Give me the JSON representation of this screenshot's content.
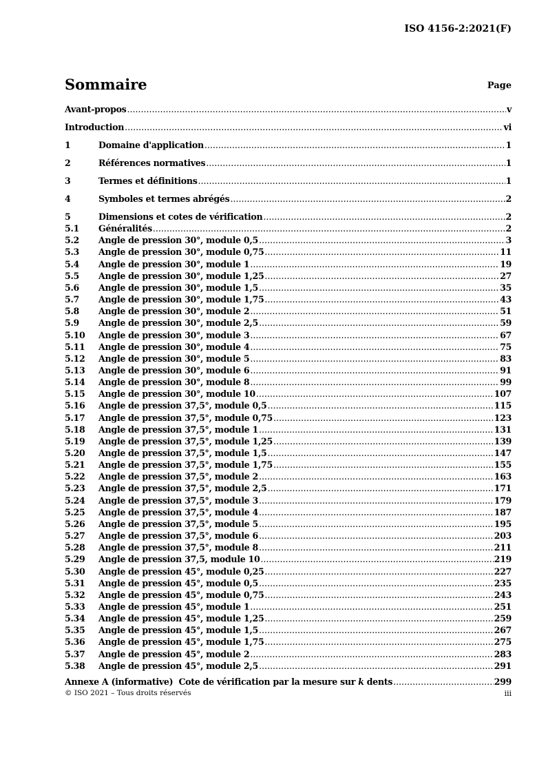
{
  "header": {
    "doc_id": "ISO 4156-2:2021(F)"
  },
  "toc": {
    "title": "Sommaire",
    "page_label": "Page",
    "top_entries": [
      {
        "number": "",
        "title": "Avant-propos",
        "page": "v"
      },
      {
        "number": "",
        "title": "Introduction",
        "page": "vi"
      },
      {
        "number": "1",
        "title": "Domaine d'application",
        "page": "1"
      },
      {
        "number": "2",
        "title": "Références normatives",
        "page": "1"
      },
      {
        "number": "3",
        "title": "Termes et définitions",
        "page": "1"
      },
      {
        "number": "4",
        "title": "Symboles et termes abrégés",
        "page": "2"
      }
    ],
    "section5": [
      {
        "number": "5",
        "title": "Dimensions et cotes de vérification",
        "page": "2"
      },
      {
        "number": "5.1",
        "title": "Généralités",
        "page": "2"
      },
      {
        "number": "5.2",
        "title": "Angle de pression 30°, module 0,5",
        "page": "3"
      },
      {
        "number": "5.3",
        "title": "Angle de pression 30°, module 0,75",
        "page": "11"
      },
      {
        "number": "5.4",
        "title": "Angle de pression 30°, module 1",
        "page": "19"
      },
      {
        "number": "5.5",
        "title": "Angle de pression 30°, module 1,25",
        "page": "27"
      },
      {
        "number": "5.6",
        "title": "Angle de pression 30°, module 1,5",
        "page": "35"
      },
      {
        "number": "5.7",
        "title": "Angle de pression 30°, module 1,75",
        "page": "43"
      },
      {
        "number": "5.8",
        "title": "Angle de pression 30°, module 2",
        "page": "51"
      },
      {
        "number": "5.9",
        "title": "Angle de pression 30°, module 2,5",
        "page": "59"
      },
      {
        "number": "5.10",
        "title": "Angle de pression 30°, module 3",
        "page": "67"
      },
      {
        "number": "5.11",
        "title": "Angle de pression 30°, module 4",
        "page": "75"
      },
      {
        "number": "5.12",
        "title": "Angle de pression 30°, module 5",
        "page": "83"
      },
      {
        "number": "5.13",
        "title": "Angle de pression 30°, module 6",
        "page": "91"
      },
      {
        "number": "5.14",
        "title": "Angle de pression 30°, module 8",
        "page": "99"
      },
      {
        "number": "5.15",
        "title": "Angle de pression 30°, module 10",
        "page": "107"
      },
      {
        "number": "5.16",
        "title": "Angle de pression 37,5°, module 0,5",
        "page": "115"
      },
      {
        "number": "5.17",
        "title": "Angle de pression 37,5°, module 0,75",
        "page": "123"
      },
      {
        "number": "5.18",
        "title": "Angle de pression 37,5°, module 1",
        "page": "131"
      },
      {
        "number": "5.19",
        "title": "Angle de pression 37,5°, module 1,25",
        "page": "139"
      },
      {
        "number": "5.20",
        "title": "Angle de pression 37,5°, module 1,5",
        "page": "147"
      },
      {
        "number": "5.21",
        "title": "Angle de pression 37,5°, module 1,75",
        "page": "155"
      },
      {
        "number": "5.22",
        "title": "Angle de pression 37,5°, module 2",
        "page": "163"
      },
      {
        "number": "5.23",
        "title": "Angle de pression 37,5°, module 2,5",
        "page": "171"
      },
      {
        "number": "5.24",
        "title": "Angle de pression 37,5°, module 3",
        "page": "179"
      },
      {
        "number": "5.25",
        "title": "Angle de pression 37,5°, module 4",
        "page": "187"
      },
      {
        "number": "5.26",
        "title": "Angle de pression 37,5°, module 5",
        "page": "195"
      },
      {
        "number": "5.27",
        "title": "Angle de pression 37,5°, module 6",
        "page": "203"
      },
      {
        "number": "5.28",
        "title": "Angle de pression 37,5°, module 8",
        "page": "211"
      },
      {
        "number": "5.29",
        "title": "Angle de pression 37,5, module 10",
        "page": "219"
      },
      {
        "number": "5.30",
        "title": "Angle de pression 45°, module 0,25",
        "page": "227"
      },
      {
        "number": "5.31",
        "title": "Angle de pression 45°, module 0,5",
        "page": "235"
      },
      {
        "number": "5.32",
        "title": "Angle de pression 45°, module 0,75",
        "page": "243"
      },
      {
        "number": "5.33",
        "title": "Angle de pression 45°, module 1",
        "page": "251"
      },
      {
        "number": "5.34",
        "title": "Angle de pression 45°, module 1,25",
        "page": "259"
      },
      {
        "number": "5.35",
        "title": "Angle de pression 45°, module 1,5",
        "page": "267"
      },
      {
        "number": "5.36",
        "title": "Angle de pression 45°, module 1,75",
        "page": "275"
      },
      {
        "number": "5.37",
        "title": "Angle de pression 45°, module 2",
        "page": "283"
      },
      {
        "number": "5.38",
        "title": "Angle de pression 45°, module 2,5",
        "page": "291"
      }
    ],
    "annex": {
      "title_before": "Annexe A (informative)  Cote de vérification par la mesure sur ",
      "title_italic": "k",
      "title_after": " dents",
      "page": "299"
    }
  },
  "footer": {
    "copyright": "© ISO 2021 – Tous droits réservés",
    "page_number": "iii"
  }
}
